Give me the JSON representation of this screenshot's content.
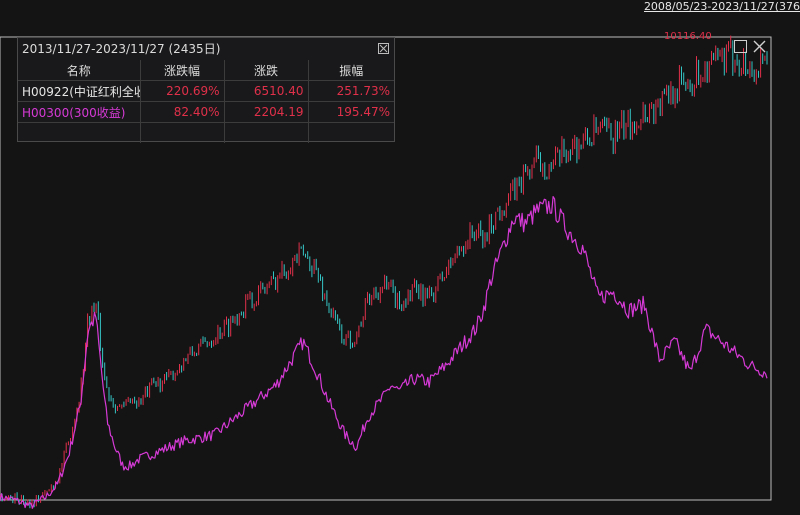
{
  "header": {
    "range_label": "2008/05/23-2023/11/27(376",
    "max_label": "10116.40"
  },
  "panel": {
    "title": "2013/11/27-2023/11/27 (2435日)",
    "columns": [
      "名称",
      "涨跌幅",
      "涨跌",
      "振幅"
    ],
    "rows": [
      {
        "name": "H00922(中证红利全收",
        "pct": "220.69%",
        "chg": "6510.40",
        "amp": "251.73%"
      },
      {
        "name": "H00300(300收益)",
        "pct": "82.40%",
        "chg": "2204.19",
        "amp": "195.47%"
      }
    ]
  },
  "colors": {
    "background": "#141414",
    "up": "#e0304a",
    "down": "#35c4c4",
    "index2": "#d63ad6",
    "frame": "#bdbdbd"
  },
  "icons": {
    "maximize": "maximize-icon",
    "close": "close-icon",
    "panel_close": "panel-close-icon"
  },
  "chart_data": {
    "type": "line",
    "x_range": [
      "2013/11/27",
      "2023/11/27"
    ],
    "ylim": [
      2950,
      10400
    ],
    "series": [
      {
        "name": "H00922(中证红利全收",
        "style": "candlestick",
        "x": [
          0.0,
          0.02,
          0.04,
          0.06,
          0.075,
          0.09,
          0.105,
          0.115,
          0.125,
          0.135,
          0.14,
          0.15,
          0.16,
          0.17,
          0.18,
          0.2,
          0.22,
          0.24,
          0.26,
          0.28,
          0.3,
          0.32,
          0.34,
          0.36,
          0.38,
          0.395,
          0.41,
          0.43,
          0.45,
          0.465,
          0.48,
          0.5,
          0.51,
          0.52,
          0.54,
          0.56,
          0.58,
          0.6,
          0.62,
          0.63,
          0.64,
          0.655,
          0.67,
          0.685,
          0.7,
          0.72,
          0.74,
          0.76,
          0.78,
          0.8,
          0.82,
          0.84,
          0.86,
          0.88,
          0.9,
          0.92,
          0.94,
          0.96,
          0.97,
          0.98,
          1.0
        ],
        "values": [
          3000,
          2980,
          2900,
          3050,
          3300,
          3900,
          4700,
          5900,
          6100,
          5000,
          4700,
          4500,
          4400,
          4600,
          4500,
          4800,
          4900,
          5200,
          5400,
          5600,
          5800,
          6100,
          6300,
          6500,
          6800,
          6900,
          6700,
          6000,
          5500,
          5600,
          6200,
          6400,
          6300,
          6100,
          6300,
          6200,
          6600,
          7000,
          7300,
          7100,
          7400,
          7700,
          7900,
          8200,
          8400,
          8300,
          8600,
          8700,
          8900,
          8800,
          9000,
          9200,
          9300,
          9600,
          9700,
          9900,
          10000,
          10116,
          9950,
          9850,
          9900
        ]
      },
      {
        "name": "H00300(300收益)",
        "x": [
          0.0,
          0.02,
          0.04,
          0.06,
          0.075,
          0.09,
          0.105,
          0.115,
          0.125,
          0.135,
          0.14,
          0.15,
          0.16,
          0.17,
          0.18,
          0.2,
          0.22,
          0.24,
          0.26,
          0.28,
          0.3,
          0.32,
          0.34,
          0.36,
          0.38,
          0.395,
          0.41,
          0.43,
          0.45,
          0.465,
          0.48,
          0.5,
          0.51,
          0.52,
          0.54,
          0.56,
          0.58,
          0.6,
          0.62,
          0.63,
          0.64,
          0.655,
          0.67,
          0.685,
          0.7,
          0.72,
          0.74,
          0.76,
          0.78,
          0.8,
          0.82,
          0.84,
          0.86,
          0.88,
          0.9,
          0.92,
          0.94,
          0.96,
          0.97,
          0.98,
          1.0
        ],
        "values": [
          3000,
          2950,
          2850,
          3000,
          3200,
          3700,
          4500,
          5700,
          5900,
          4700,
          4200,
          3800,
          3500,
          3500,
          3600,
          3700,
          3800,
          3900,
          3950,
          4000,
          4200,
          4400,
          4600,
          4800,
          5200,
          5500,
          5100,
          4500,
          4000,
          3800,
          4300,
          4600,
          4800,
          4700,
          4900,
          4850,
          5100,
          5400,
          5700,
          6000,
          6500,
          7000,
          7500,
          7400,
          7600,
          7700,
          7300,
          7000,
          6200,
          6300,
          6000,
          6100,
          5200,
          5500,
          5000,
          5700,
          5500,
          5300,
          5200,
          5100,
          5000
        ]
      }
    ]
  }
}
